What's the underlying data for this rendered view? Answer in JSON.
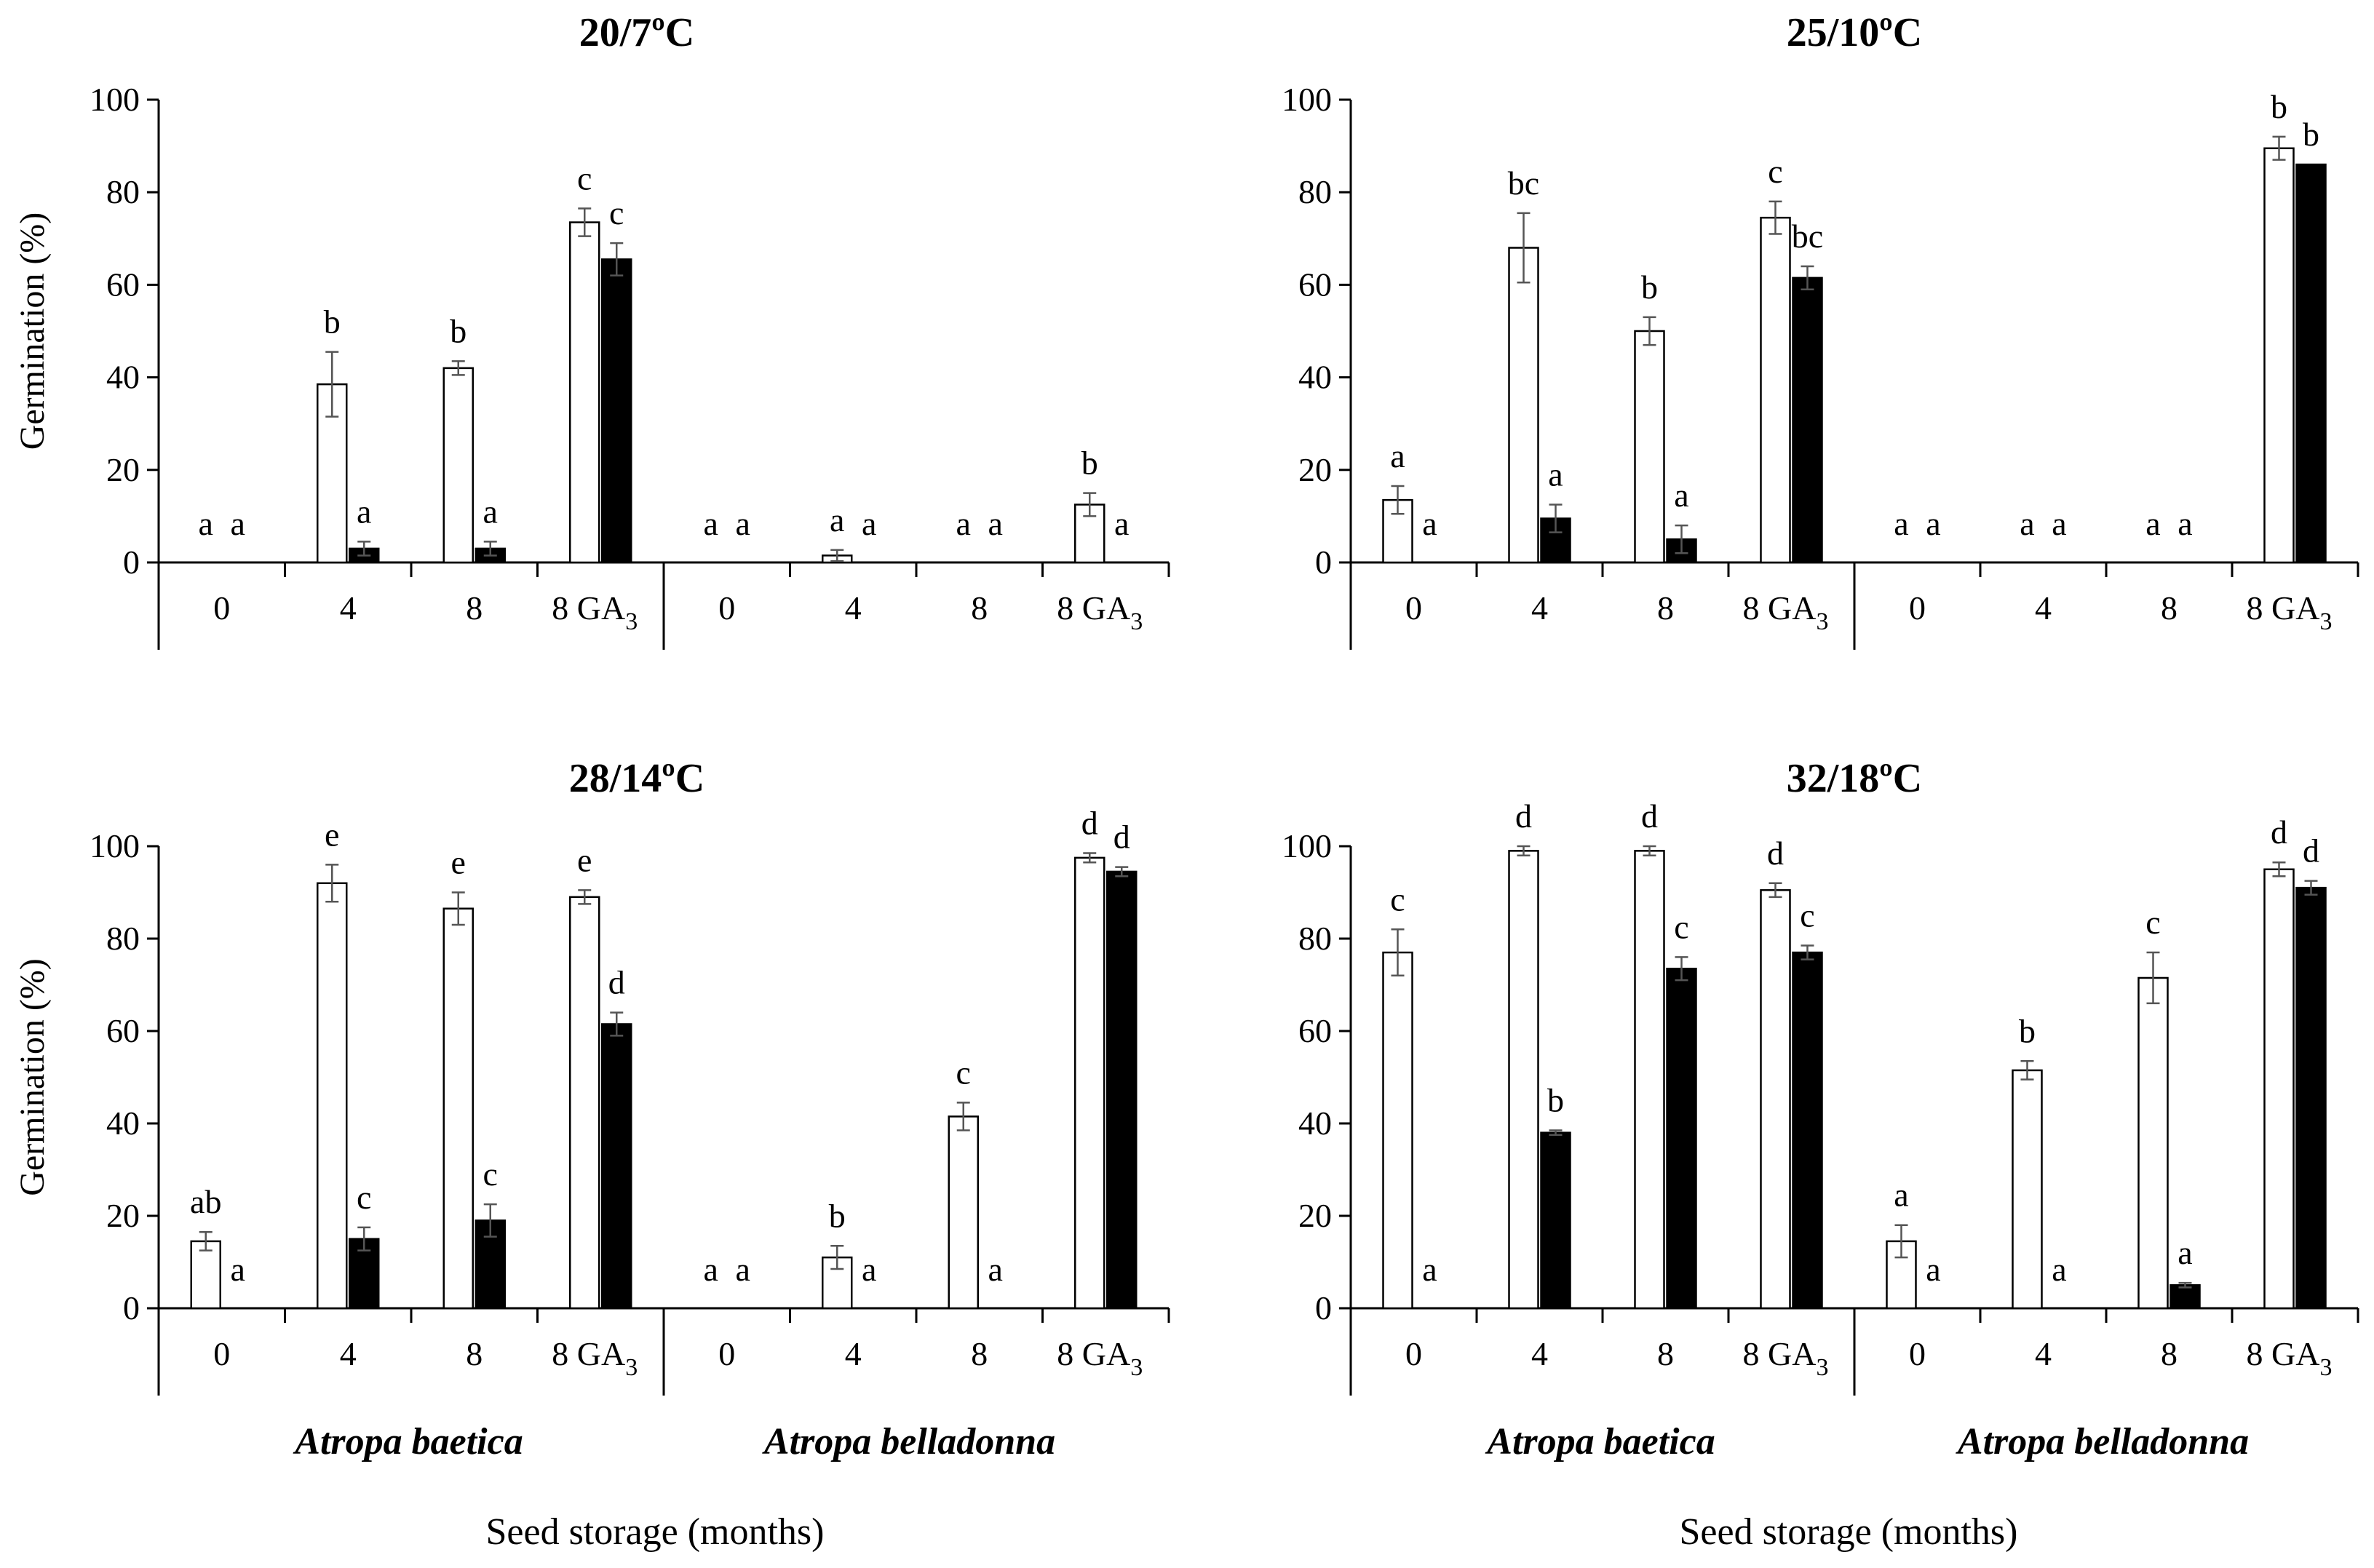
{
  "figure": {
    "x_axis_title": "Seed storage (months)",
    "y_axis_title": "Germination (%)",
    "species": [
      "Atropa baetica",
      "Atropa belladonna"
    ],
    "colors": {
      "open_bar": "#ffffff",
      "filled_bar": "#000000",
      "axis": "#000000"
    }
  },
  "chart_data": [
    {
      "type": "bar",
      "title": "20/7ºC",
      "ylabel": "Germination (%)",
      "ylim": [
        0,
        100
      ],
      "yticks": [
        0,
        20,
        40,
        60,
        80,
        100
      ],
      "categories": [
        "0",
        "4",
        "8",
        "8 GA3",
        "0",
        "4",
        "8",
        "8 GA3"
      ],
      "groups": [
        "Atropa baetica",
        "Atropa belladonna"
      ],
      "series": [
        {
          "name": "open",
          "values": [
            0,
            38.5,
            42,
            73.5,
            0,
            1.5,
            0,
            12.5
          ],
          "errors": [
            0,
            7,
            1.5,
            3,
            0,
            1.2,
            0,
            2.5
          ],
          "letters": [
            "a",
            "b",
            "b",
            "c",
            "a",
            "a",
            "a",
            "b"
          ]
        },
        {
          "name": "filled",
          "values": [
            0,
            3,
            3,
            65.5,
            0,
            0,
            0,
            0
          ],
          "errors": [
            0,
            1.5,
            1.5,
            3.5,
            0,
            0,
            0,
            0
          ],
          "letters": [
            "a",
            "a",
            "a",
            "c",
            "a",
            "a",
            "a",
            "a"
          ]
        }
      ]
    },
    {
      "type": "bar",
      "title": "25/10ºC",
      "ylabel": "",
      "ylim": [
        0,
        100
      ],
      "yticks": [
        0,
        20,
        40,
        60,
        80,
        100
      ],
      "categories": [
        "0",
        "4",
        "8",
        "8 GA3",
        "0",
        "4",
        "8",
        "8 GA3"
      ],
      "groups": [
        "Atropa baetica",
        "Atropa belladonna"
      ],
      "series": [
        {
          "name": "open",
          "values": [
            13.5,
            68,
            50,
            74.5,
            0,
            0,
            0,
            89.5
          ],
          "errors": [
            3,
            7.5,
            3,
            3.5,
            0,
            0,
            0,
            2.5
          ],
          "letters": [
            "a",
            "bc",
            "b",
            "c",
            "a",
            "a",
            "a",
            "b"
          ]
        },
        {
          "name": "filled",
          "values": [
            0,
            9.5,
            5,
            61.5,
            0,
            0,
            0,
            86
          ],
          "errors": [
            0,
            3,
            3,
            2.5,
            0,
            0,
            0,
            0
          ],
          "letters": [
            "a",
            "a",
            "a",
            "bc",
            "a",
            "a",
            "a",
            "b"
          ]
        }
      ]
    },
    {
      "type": "bar",
      "title": "28/14ºC",
      "ylabel": "Germination (%)",
      "ylim": [
        0,
        100
      ],
      "yticks": [
        0,
        20,
        40,
        60,
        80,
        100
      ],
      "categories": [
        "0",
        "4",
        "8",
        "8 GA3",
        "0",
        "4",
        "8",
        "8 GA3"
      ],
      "groups": [
        "Atropa baetica",
        "Atropa belladonna"
      ],
      "series": [
        {
          "name": "open",
          "values": [
            14.5,
            92,
            86.5,
            89,
            0,
            11,
            41.5,
            97.5
          ],
          "errors": [
            2,
            4,
            3.5,
            1.5,
            0,
            2.5,
            3,
            1
          ],
          "letters": [
            "ab",
            "e",
            "e",
            "e",
            "a",
            "b",
            "c",
            "d"
          ]
        },
        {
          "name": "filled",
          "values": [
            0,
            15,
            19,
            61.5,
            0,
            0,
            0,
            94.5
          ],
          "errors": [
            0,
            2.5,
            3.5,
            2.5,
            0,
            0,
            0,
            1
          ],
          "letters": [
            "a",
            "c",
            "c",
            "d",
            "a",
            "a",
            "a",
            "d"
          ]
        }
      ]
    },
    {
      "type": "bar",
      "title": "32/18ºC",
      "ylabel": "",
      "ylim": [
        0,
        100
      ],
      "yticks": [
        0,
        20,
        40,
        60,
        80,
        100
      ],
      "categories": [
        "0",
        "4",
        "8",
        "8 GA3",
        "0",
        "4",
        "8",
        "8 GA3"
      ],
      "groups": [
        "Atropa baetica",
        "Atropa belladonna"
      ],
      "series": [
        {
          "name": "open",
          "values": [
            77,
            99,
            99,
            90.5,
            14.5,
            51.5,
            71.5,
            95
          ],
          "errors": [
            5,
            1,
            1,
            1.5,
            3.5,
            2,
            5.5,
            1.5
          ],
          "letters": [
            "c",
            "d",
            "d",
            "d",
            "a",
            "b",
            "c",
            "d"
          ]
        },
        {
          "name": "filled",
          "values": [
            0,
            38,
            73.5,
            77,
            0,
            0,
            5,
            91
          ],
          "errors": [
            0,
            0.5,
            2.5,
            1.5,
            0,
            0,
            0.5,
            1.5
          ],
          "letters": [
            "a",
            "b",
            "c",
            "c",
            "a",
            "a",
            "a",
            "d"
          ]
        }
      ]
    }
  ]
}
